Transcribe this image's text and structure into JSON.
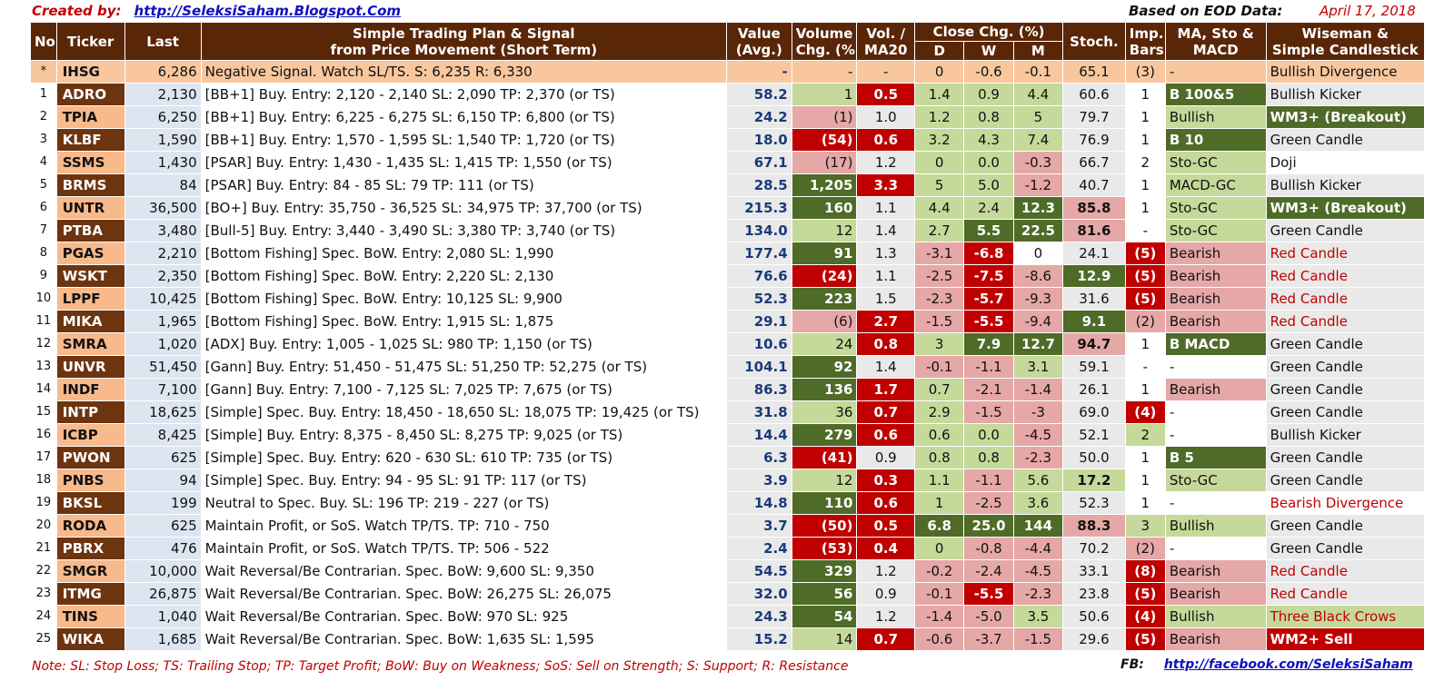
{
  "header": {
    "created_label": "Created by:",
    "created_link": "http://SeleksiSaham.Blogspot.Com",
    "basis": "Based on EOD Data:",
    "date": "April 17, 2018"
  },
  "columns": {
    "no": "No",
    "ticker": "Ticker",
    "last": "Last",
    "plan1": "Simple Trading Plan & Signal",
    "plan2": "from Price Movement (Short Term)",
    "value1": "Value",
    "value2": "(Avg.)",
    "vol1": "Volume",
    "vol2": "Chg. (%)",
    "volma1": "Vol. /",
    "volma2": "MA20",
    "close": "Close Chg. (%)",
    "d": "D",
    "w": "W",
    "m": "M",
    "stoch": "Stoch.",
    "imp1": "Imp.",
    "imp2": "Bars",
    "ma1": "MA, Sto &",
    "ma2": "MACD",
    "wise1": "Wiseman  &",
    "wise2": "Simple Candlestick"
  },
  "rows": [
    {
      "no": "*",
      "ticker": "IHSG",
      "last": "6,286",
      "plan": "Negative Signal.  Watch SL/TS.  S:  6,235  R:  6,330",
      "value": "-",
      "vol": "-",
      "volma": "-",
      "d": "0",
      "w": "-0.6",
      "m": "-0.1",
      "stoch": "65.1",
      "imp": "(3)",
      "ma": "-",
      "wise": "Bullish Divergence"
    },
    {
      "no": "1",
      "ticker": "ADRO",
      "last": "2,130",
      "plan": "[BB+1] Buy.  Entry:  2,120 -  2,140  SL:  2,090 TP:  2,370 (or TS)",
      "value": "58.2",
      "vol": "1",
      "volma": "0.5",
      "d": "1.4",
      "w": "0.9",
      "m": "4.4",
      "stoch": "60.6",
      "imp": "1",
      "ma": "B 100&5",
      "wise": "Bullish Kicker"
    },
    {
      "no": "2",
      "ticker": "TPIA",
      "last": "6,250",
      "plan": "[BB+1] Buy.  Entry:  6,225 -  6,275  SL:  6,150 TP:  6,800 (or TS)",
      "value": "24.2",
      "vol": "(1)",
      "volma": "1.0",
      "d": "1.2",
      "w": "0.8",
      "m": "5",
      "stoch": "79.7",
      "imp": "1",
      "ma": "Bullish",
      "wise": "WM3+ (Breakout)"
    },
    {
      "no": "3",
      "ticker": "KLBF",
      "last": "1,590",
      "plan": "[BB+1] Buy.  Entry:  1,570 -  1,595  SL:  1,540 TP:  1,720 (or TS)",
      "value": "18.0",
      "vol": "(54)",
      "volma": "0.6",
      "d": "3.2",
      "w": "4.3",
      "m": "7.4",
      "stoch": "76.9",
      "imp": "1",
      "ma": "B 10",
      "wise": "Green Candle"
    },
    {
      "no": "4",
      "ticker": "SSMS",
      "last": "1,430",
      "plan": "[PSAR] Buy.  Entry:  1,430 -  1,435  SL:  1,415 TP:  1,550 (or TS)",
      "value": "67.1",
      "vol": "(17)",
      "volma": "1.2",
      "d": "0",
      "w": "0.0",
      "m": "-0.3",
      "stoch": "66.7",
      "imp": "2",
      "ma": "Sto-GC",
      "wise": "Doji"
    },
    {
      "no": "5",
      "ticker": "BRMS",
      "last": "84",
      "plan": "[PSAR] Buy.  Entry:     84 -     85  SL:     79  TP:     111 (or TS)",
      "value": "28.5",
      "vol": "1,205",
      "volma": "3.3",
      "d": "5",
      "w": "5.0",
      "m": "-1.2",
      "stoch": "40.7",
      "imp": "1",
      "ma": "MACD-GC",
      "wise": "Bullish Kicker"
    },
    {
      "no": "6",
      "ticker": "UNTR",
      "last": "36,500",
      "plan": "[BO+] Buy.  Entry: 35,750 - 36,525  SL: 34,975 TP: 37,700 (or TS)",
      "value": "215.3",
      "vol": "160",
      "volma": "1.1",
      "d": "4.4",
      "w": "2.4",
      "m": "12.3",
      "stoch": "85.8",
      "imp": "1",
      "ma": "Sto-GC",
      "wise": "WM3+ (Breakout)"
    },
    {
      "no": "7",
      "ticker": "PTBA",
      "last": "3,480",
      "plan": "[Bull-5] Buy.  Entry:  3,440 -  3,490  SL:  3,380 TP:  3,740 (or TS)",
      "value": "134.0",
      "vol": "12",
      "volma": "1.4",
      "d": "2.7",
      "w": "5.5",
      "m": "22.5",
      "stoch": "81.6",
      "imp": "-",
      "ma": "Sto-GC",
      "wise": "Green Candle"
    },
    {
      "no": "8",
      "ticker": "PGAS",
      "last": "2,210",
      "plan": "[Bottom Fishing]  Spec. BoW. Entry:  2,080  SL:  1,990",
      "value": "177.4",
      "vol": "91",
      "volma": "1.3",
      "d": "-3.1",
      "w": "-6.8",
      "m": "0",
      "stoch": "24.1",
      "imp": "(5)",
      "ma": "Bearish",
      "wise": "Red Candle"
    },
    {
      "no": "9",
      "ticker": "WSKT",
      "last": "2,350",
      "plan": "[Bottom Fishing]  Spec. BoW. Entry:  2,220  SL:  2,130",
      "value": "76.6",
      "vol": "(24)",
      "volma": "1.1",
      "d": "-2.5",
      "w": "-7.5",
      "m": "-8.6",
      "stoch": "12.9",
      "imp": "(5)",
      "ma": "Bearish",
      "wise": "Red Candle"
    },
    {
      "no": "10",
      "ticker": "LPPF",
      "last": "10,425",
      "plan": "[Bottom Fishing]  Spec. BoW. Entry: 10,125  SL:  9,900",
      "value": "52.3",
      "vol": "223",
      "volma": "1.5",
      "d": "-2.3",
      "w": "-5.7",
      "m": "-9.3",
      "stoch": "31.6",
      "imp": "(5)",
      "ma": "Bearish",
      "wise": "Red Candle"
    },
    {
      "no": "11",
      "ticker": "MIKA",
      "last": "1,965",
      "plan": "[Bottom Fishing]  Spec. BoW. Entry:  1,915  SL:  1,875",
      "value": "29.1",
      "vol": "(6)",
      "volma": "2.7",
      "d": "-1.5",
      "w": "-5.5",
      "m": "-9.4",
      "stoch": "9.1",
      "imp": "(2)",
      "ma": "Bearish",
      "wise": "Red Candle"
    },
    {
      "no": "12",
      "ticker": "SMRA",
      "last": "1,020",
      "plan": "[ADX] Buy.  Entry:  1,005 -  1,025  SL:    980 TP:  1,150 (or TS)",
      "value": "10.6",
      "vol": "24",
      "volma": "0.8",
      "d": "3",
      "w": "7.9",
      "m": "12.7",
      "stoch": "94.7",
      "imp": "1",
      "ma": "B MACD",
      "wise": "Green Candle"
    },
    {
      "no": "13",
      "ticker": "UNVR",
      "last": "51,450",
      "plan": "[Gann] Buy.  Entry: 51,450 - 51,475  SL: 51,250 TP: 52,275 (or TS)",
      "value": "104.1",
      "vol": "92",
      "volma": "1.4",
      "d": "-0.1",
      "w": "-1.1",
      "m": "3.1",
      "stoch": "59.1",
      "imp": "-",
      "ma": "-",
      "wise": "Green Candle"
    },
    {
      "no": "14",
      "ticker": "INDF",
      "last": "7,100",
      "plan": "[Gann] Buy.  Entry:  7,100 -  7,125  SL:  7,025 TP:  7,675 (or TS)",
      "value": "86.3",
      "vol": "136",
      "volma": "1.7",
      "d": "0.7",
      "w": "-2.1",
      "m": "-1.4",
      "stoch": "26.1",
      "imp": "1",
      "ma": "Bearish",
      "wise": "Green Candle"
    },
    {
      "no": "15",
      "ticker": "INTP",
      "last": "18,625",
      "plan": "[Simple] Spec. Buy. Entry: 18,450 - 18,650  SL: 18,075 TP: 19,425 (or TS)",
      "value": "31.8",
      "vol": "36",
      "volma": "0.7",
      "d": "2.9",
      "w": "-1.5",
      "m": "-3",
      "stoch": "69.0",
      "imp": "(4)",
      "ma": "-",
      "wise": "Green Candle"
    },
    {
      "no": "16",
      "ticker": "ICBP",
      "last": "8,425",
      "plan": "[Simple] Buy.  Entry:  8,375 -  8,450  SL:  8,275 TP:  9,025 (or TS)",
      "value": "14.4",
      "vol": "279",
      "volma": "0.6",
      "d": "0.6",
      "w": "0.0",
      "m": "-4.5",
      "stoch": "52.1",
      "imp": "2",
      "ma": "-",
      "wise": "Bullish Kicker"
    },
    {
      "no": "17",
      "ticker": "PWON",
      "last": "625",
      "plan": "[Simple] Spec. Buy. Entry:    620 -    630  SL:    610 TP:    735 (or TS)",
      "value": "6.3",
      "vol": "(41)",
      "volma": "0.9",
      "d": "0.8",
      "w": "0.8",
      "m": "-2.3",
      "stoch": "50.0",
      "imp": "1",
      "ma": "B 5",
      "wise": "Green Candle"
    },
    {
      "no": "18",
      "ticker": "PNBS",
      "last": "94",
      "plan": "[Simple] Spec. Buy. Entry:     94 -     95  SL:     91  TP:    117 (or TS)",
      "value": "3.9",
      "vol": "12",
      "volma": "0.3",
      "d": "1.1",
      "w": "-1.1",
      "m": "5.6",
      "stoch": "17.2",
      "imp": "1",
      "ma": "Sto-GC",
      "wise": "Green Candle"
    },
    {
      "no": "19",
      "ticker": "BKSL",
      "last": "199",
      "plan": "Neutral to Spec. Buy.  SL:   196 TP:   219 -   227 (or TS)",
      "value": "14.8",
      "vol": "110",
      "volma": "0.6",
      "d": "1",
      "w": "-2.5",
      "m": "3.6",
      "stoch": "52.3",
      "imp": "1",
      "ma": "-",
      "wise": "Bearish Divergence"
    },
    {
      "no": "20",
      "ticker": "RODA",
      "last": "625",
      "plan": "Maintain Profit, or SoS. Watch TP/TS.  TP:    710 -   750",
      "value": "3.7",
      "vol": "(50)",
      "volma": "0.5",
      "d": "6.8",
      "w": "25.0",
      "m": "144",
      "stoch": "88.3",
      "imp": "3",
      "ma": "Bullish",
      "wise": "Green Candle"
    },
    {
      "no": "21",
      "ticker": "PBRX",
      "last": "476",
      "plan": "Maintain Profit, or SoS. Watch TP/TS.  TP:    506 -   522",
      "value": "2.4",
      "vol": "(53)",
      "volma": "0.4",
      "d": "0",
      "w": "-0.8",
      "m": "-4.4",
      "stoch": "70.2",
      "imp": "(2)",
      "ma": "-",
      "wise": "Green Candle"
    },
    {
      "no": "22",
      "ticker": "SMGR",
      "last": "10,000",
      "plan": "Wait Reversal/Be Contrarian.  Spec. BoW:  9,600  SL:  9,350",
      "value": "54.5",
      "vol": "329",
      "volma": "1.2",
      "d": "-0.2",
      "w": "-2.4",
      "m": "-4.5",
      "stoch": "33.1",
      "imp": "(8)",
      "ma": "Bearish",
      "wise": "Red Candle"
    },
    {
      "no": "23",
      "ticker": "ITMG",
      "last": "26,875",
      "plan": "Wait Reversal/Be Contrarian.  Spec. BoW: 26,275  SL: 26,075",
      "value": "32.0",
      "vol": "56",
      "volma": "0.9",
      "d": "-0.1",
      "w": "-5.5",
      "m": "-2.3",
      "stoch": "23.8",
      "imp": "(5)",
      "ma": "Bearish",
      "wise": "Red Candle"
    },
    {
      "no": "24",
      "ticker": "TINS",
      "last": "1,040",
      "plan": "Wait Reversal/Be Contrarian.  Spec. BoW:    970  SL:    925",
      "value": "24.3",
      "vol": "54",
      "volma": "1.2",
      "d": "-1.4",
      "w": "-5.0",
      "m": "3.5",
      "stoch": "50.6",
      "imp": "(4)",
      "ma": "Bullish",
      "wise": "Three Black Crows"
    },
    {
      "no": "25",
      "ticker": "WIKA",
      "last": "1,685",
      "plan": "Wait Reversal/Be Contrarian.  Spec. BoW:  1,635  SL:  1,595",
      "value": "15.2",
      "vol": "14",
      "volma": "0.7",
      "d": "-0.6",
      "w": "-3.7",
      "m": "-1.5",
      "stoch": "29.6",
      "imp": "(5)",
      "ma": "Bearish",
      "wise": "WM2+ Sell"
    }
  ],
  "footer": {
    "note": "Note:  SL: Stop Loss; TS: Trailing Stop; TP: Target Profit; BoW: Buy on Weakness; SoS: Sell on Strength; S: Support; R: Resistance",
    "fb_label": "FB:",
    "fb_link": "http://facebook.com/SeleksiSaham"
  },
  "colors": {
    "header_bg": "#5a2608",
    "ticker_dark": "#6d3410",
    "ticker_light": "#f8b98b",
    "red": "#c00000",
    "pink": "#e6a7a7",
    "light_green": "#c5d99a",
    "dark_green": "#4f6b28"
  }
}
